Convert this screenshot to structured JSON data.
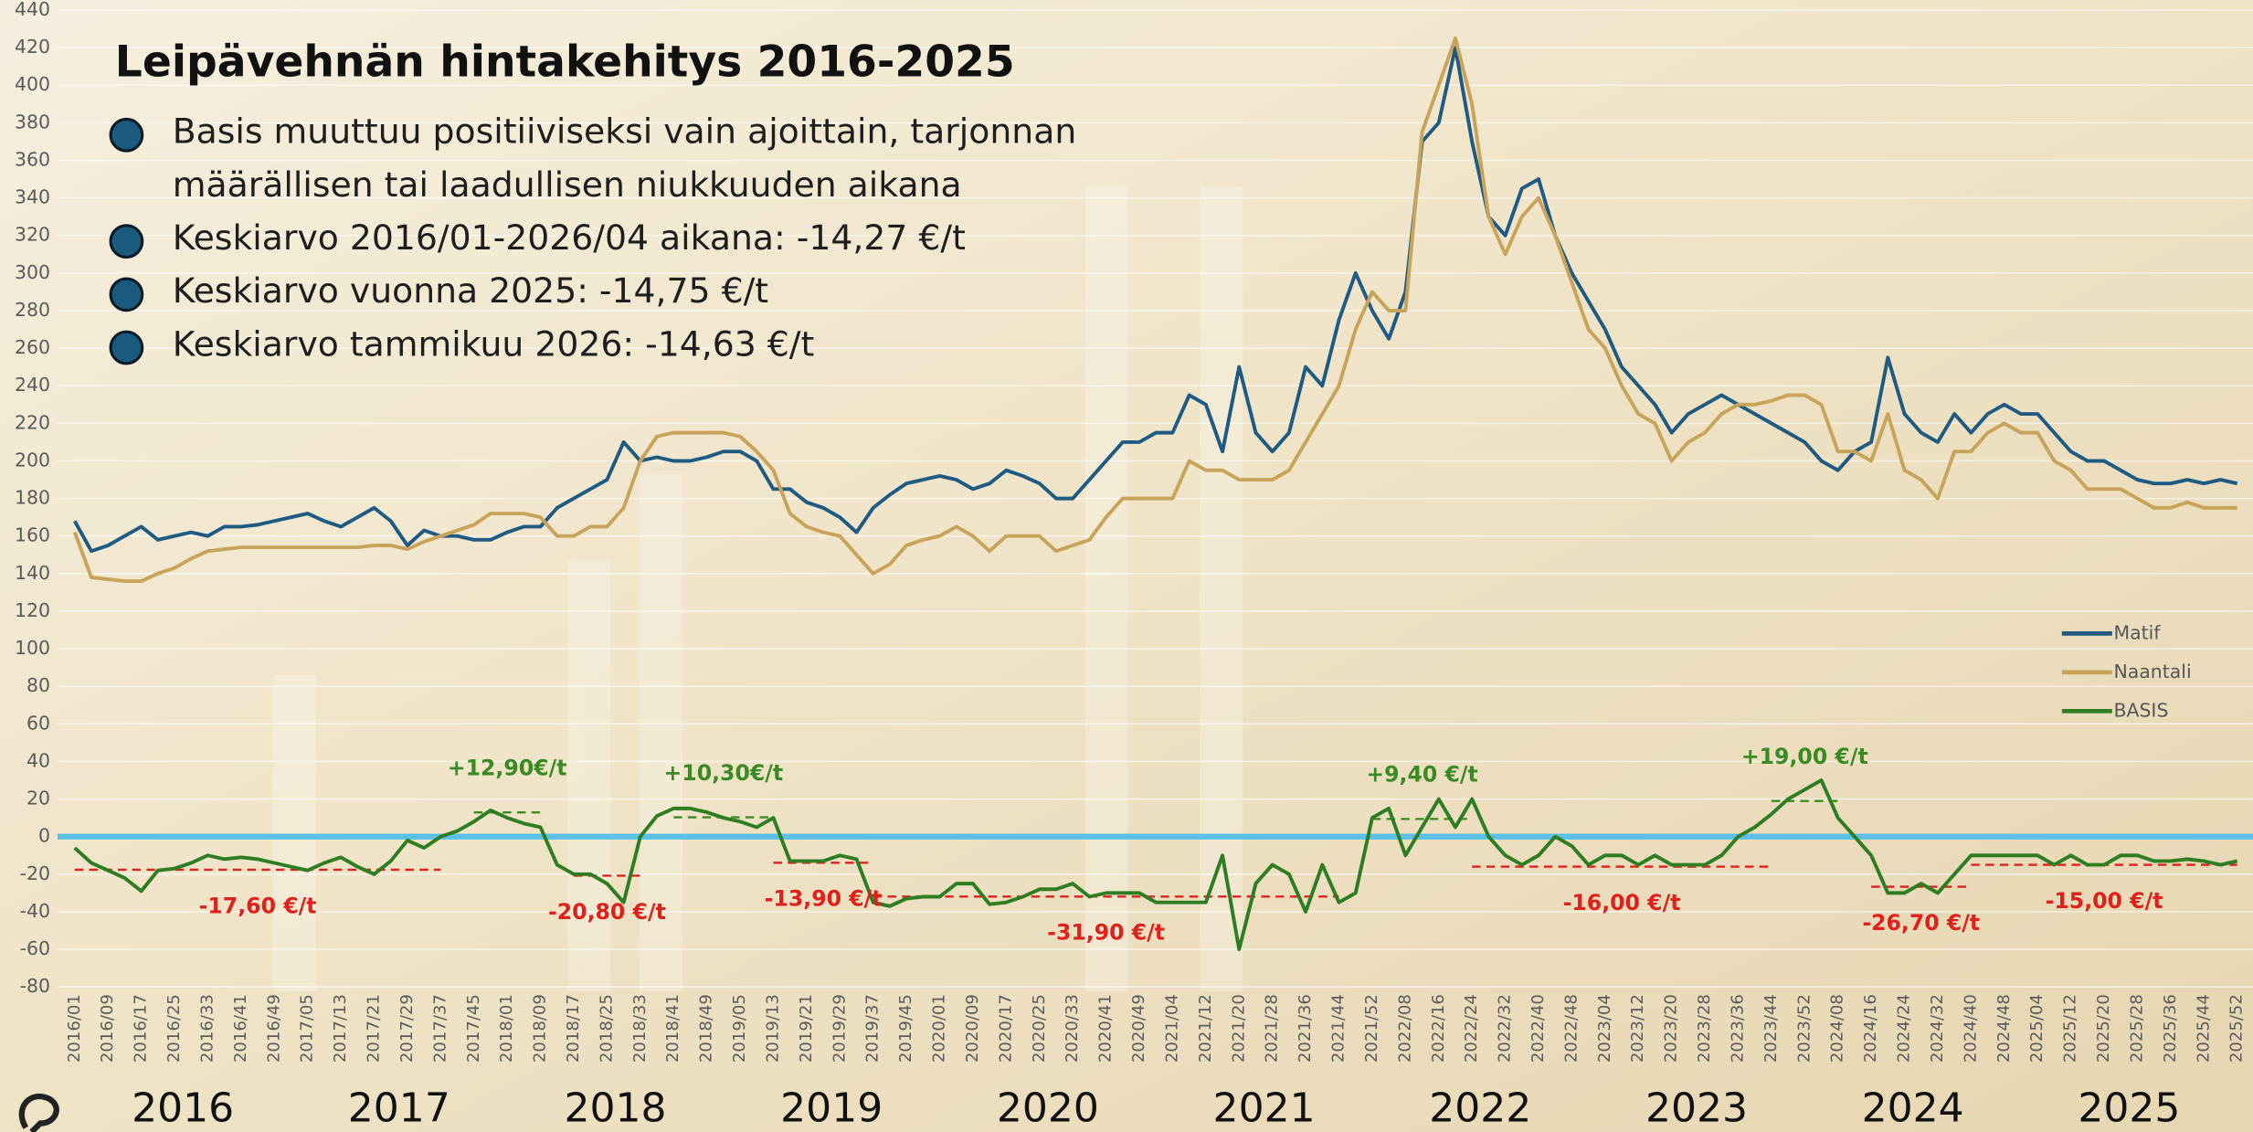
{
  "chart_data": {
    "type": "line",
    "title": "Leipävehnän hintakehitys 2016-2025",
    "bullets": [
      [
        "Basis muuttuu positiiviseksi vain ajoittain, tarjonnan",
        "määrällisen tai laadullisen niukkuuden aikana"
      ],
      [
        "Keskiarvo 2016/01-2026/04 aikana: -14,27 €/t"
      ],
      [
        "Keskiarvo vuonna 2025: -14,75 €/t"
      ],
      [
        "Keskiarvo tammikuu 2026: -14,63 €/t"
      ]
    ],
    "categories": [
      "2016/01",
      null,
      "2016/09",
      null,
      "2016/17",
      null,
      "2016/25",
      null,
      "2016/33",
      null,
      "2016/41",
      null,
      "2016/49",
      null,
      "2017/05",
      null,
      "2017/13",
      null,
      "2017/21",
      null,
      "2017/29",
      null,
      "2017/37",
      null,
      "2017/45",
      null,
      "2018/01",
      null,
      "2018/09",
      null,
      "2018/17",
      null,
      "2018/25",
      null,
      "2018/33",
      null,
      "2018/41",
      null,
      "2018/49",
      null,
      "2019/05",
      null,
      "2019/13",
      null,
      "2019/21",
      null,
      "2019/29",
      null,
      "2019/37",
      null,
      "2019/45",
      null,
      "2020/01",
      null,
      "2020/09",
      null,
      "2020/17",
      null,
      "2020/25",
      null,
      "2020/33",
      null,
      "2020/41",
      null,
      "2020/49",
      null,
      "2021/04",
      null,
      "2021/12",
      null,
      "2021/20",
      null,
      "2021/28",
      null,
      "2021/36",
      null,
      "2021/44",
      null,
      "2021/52",
      null,
      "2022/08",
      null,
      "2022/16",
      null,
      "2022/24",
      null,
      "2022/32",
      null,
      "2022/40",
      null,
      "2022/48",
      null,
      "2023/04",
      null,
      "2023/12",
      null,
      "2023/20",
      null,
      "2023/28",
      null,
      "2023/36",
      null,
      "2023/44",
      null,
      "2023/52",
      null,
      "2024/08",
      null,
      "2024/16",
      null,
      "2024/24",
      null,
      "2024/32",
      null,
      "2024/40",
      null,
      "2024/48",
      null,
      "2025/04",
      null,
      "2025/12",
      null,
      "2025/20",
      null,
      "2025/28",
      null,
      "2025/36",
      null,
      "2025/44",
      null,
      "2025/52"
    ],
    "series": [
      {
        "name": "Matif",
        "color": "#1f5a82",
        "values": [
          168,
          152,
          155,
          160,
          165,
          158,
          160,
          162,
          160,
          165,
          165,
          166,
          168,
          170,
          172,
          168,
          165,
          170,
          175,
          168,
          155,
          163,
          160,
          160,
          158,
          158,
          162,
          165,
          165,
          175,
          180,
          185,
          190,
          210,
          200,
          202,
          200,
          200,
          202,
          205,
          205,
          200,
          185,
          185,
          178,
          175,
          170,
          162,
          175,
          182,
          188,
          190,
          192,
          190,
          185,
          188,
          195,
          192,
          188,
          180,
          180,
          190,
          200,
          210,
          210,
          215,
          215,
          235,
          230,
          205,
          250,
          215,
          205,
          215,
          250,
          240,
          275,
          300,
          280,
          265,
          290,
          370,
          380,
          420,
          370,
          330,
          320,
          345,
          350,
          320,
          300,
          285,
          270,
          250,
          240,
          230,
          215,
          225,
          230,
          235,
          230,
          225,
          220,
          215,
          210,
          200,
          195,
          205,
          210,
          255,
          225,
          215,
          210,
          225,
          215,
          225,
          230,
          225,
          225,
          215,
          205,
          200,
          200,
          195,
          190,
          188,
          188,
          190,
          188,
          190,
          188
        ]
      },
      {
        "name": "Naantali",
        "color": "#c8a35a",
        "values": [
          162,
          138,
          137,
          136,
          136,
          140,
          143,
          148,
          152,
          153,
          154,
          154,
          154,
          154,
          154,
          154,
          154,
          154,
          155,
          155,
          153,
          157,
          160,
          163,
          166,
          172,
          172,
          172,
          170,
          160,
          160,
          165,
          165,
          175,
          200,
          213,
          215,
          215,
          215,
          215,
          213,
          205,
          195,
          172,
          165,
          162,
          160,
          150,
          140,
          145,
          155,
          158,
          160,
          165,
          160,
          152,
          160,
          160,
          160,
          152,
          155,
          158,
          170,
          180,
          180,
          180,
          180,
          200,
          195,
          195,
          190,
          190,
          190,
          195,
          210,
          225,
          240,
          270,
          290,
          280,
          280,
          375,
          400,
          425,
          390,
          330,
          310,
          330,
          340,
          320,
          295,
          270,
          260,
          240,
          225,
          220,
          200,
          210,
          215,
          225,
          230,
          230,
          232,
          235,
          235,
          230,
          205,
          205,
          200,
          225,
          195,
          190,
          180,
          205,
          205,
          215,
          220,
          215,
          215,
          200,
          195,
          185,
          185,
          185,
          180,
          175,
          175,
          178,
          175,
          175,
          175
        ]
      },
      {
        "name": "BASIS",
        "color": "#2e7d23",
        "values": [
          -6,
          -14,
          -18,
          -22,
          -29,
          -18,
          -17,
          -14,
          -10,
          -12,
          -11,
          -12,
          -14,
          -16,
          -18,
          -14,
          -11,
          -16,
          -20,
          -13,
          -2,
          -6,
          0,
          3,
          8,
          14,
          10,
          7,
          5,
          -15,
          -20,
          -20,
          -25,
          -35,
          0,
          11,
          15,
          15,
          13,
          10,
          8,
          5,
          10,
          -13,
          -13,
          -13,
          -10,
          -12,
          -35,
          -37,
          -33,
          -32,
          -32,
          -25,
          -25,
          -36,
          -35,
          -32,
          -28,
          -28,
          -25,
          -32,
          -30,
          -30,
          -30,
          -35,
          -35,
          -35,
          -35,
          -10,
          -60,
          -25,
          -15,
          -20,
          -40,
          -15,
          -35,
          -30,
          10,
          15,
          -10,
          5,
          20,
          5,
          20,
          0,
          -10,
          -15,
          -10,
          0,
          -5,
          -15,
          -10,
          -10,
          -15,
          -10,
          -15,
          -15,
          -15,
          -10,
          0,
          5,
          12,
          20,
          25,
          30,
          10,
          0,
          -10,
          -30,
          -30,
          -25,
          -30,
          -20,
          -10,
          -10,
          -10,
          -10,
          -10,
          -15,
          -10,
          -15,
          -15,
          -10,
          -10,
          -13,
          -13,
          -12,
          -13,
          -15,
          -13
        ]
      }
    ],
    "annotations": [
      {
        "label": "-17,60 €/t",
        "value": -17.6,
        "start": "2016/01",
        "end": "2017/37",
        "color": "#e0201b"
      },
      {
        "label": "-20,80 €/t",
        "value": -20.8,
        "start": "2018/17",
        "end": "2018/33",
        "color": "#e0201b"
      },
      {
        "label": "-13,90 €/t",
        "value": -13.9,
        "start": "2019/13",
        "end": "2019/37",
        "color": "#e0201b"
      },
      {
        "label": "-31,90 €/t",
        "value": -31.9,
        "start": "2019/37",
        "end": "2021/44",
        "color": "#e0201b"
      },
      {
        "label": "-16,00 €/t",
        "value": -16,
        "start": "2022/24",
        "end": "2023/44",
        "color": "#e0201b"
      },
      {
        "label": "-26,70 €/t",
        "value": -26.7,
        "start": "2024/16",
        "end": "2024/40",
        "color": "#e0201b"
      },
      {
        "label": "-15,00 €/t",
        "value": -15,
        "start": "2024/40",
        "end": "2025/52",
        "color": "#e0201b"
      },
      {
        "label": "+12,90€/t",
        "value": 12.9,
        "start": "2017/45",
        "end": "2018/09",
        "color": "#3a8a24"
      },
      {
        "label": "+10,30€/t",
        "value": 10.3,
        "start": "2018/41",
        "end": "2019/13",
        "color": "#3a8a24"
      },
      {
        "label": "+9,40 €/t",
        "value": 9.4,
        "start": "2021/52",
        "end": "2022/24",
        "color": "#3a8a24"
      },
      {
        "label": "+19,00 €/t",
        "value": 19,
        "start": "2023/44",
        "end": "2024/08",
        "color": "#3a8a24"
      }
    ],
    "years": [
      "2016",
      "2017",
      "2018",
      "2019",
      "2020",
      "2021",
      "2022",
      "2023",
      "2024",
      "2025"
    ],
    "ylim": [
      -80,
      440
    ],
    "yticks": [
      -80,
      -60,
      -40,
      -20,
      0,
      20,
      40,
      60,
      80,
      100,
      120,
      140,
      160,
      180,
      200,
      220,
      240,
      260,
      280,
      300,
      320,
      340,
      360,
      380,
      400,
      420,
      440
    ],
    "grid": true,
    "zero_line": {
      "value": 0,
      "color": "#5bc0e8"
    },
    "legend": "right"
  }
}
